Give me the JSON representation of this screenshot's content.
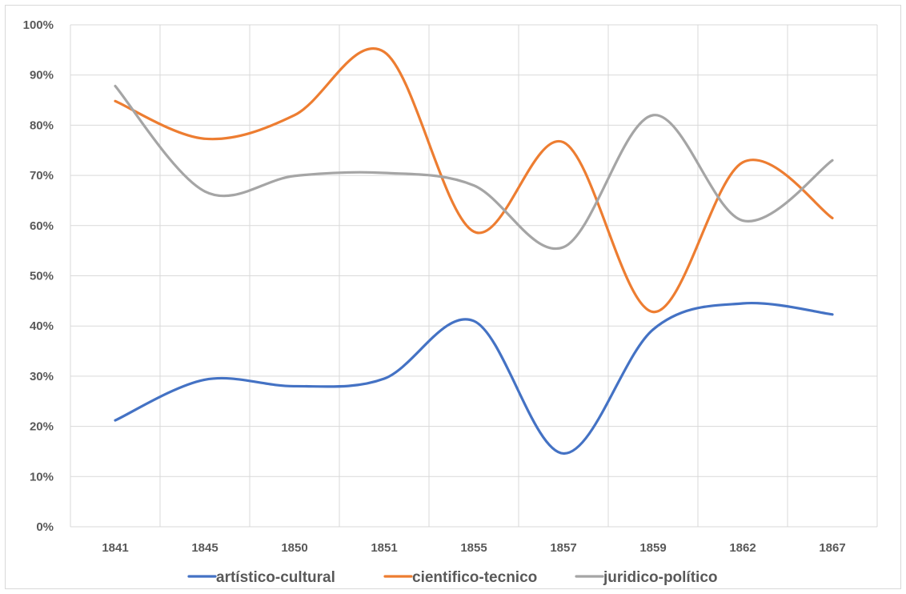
{
  "chart_data": {
    "type": "line",
    "title": "",
    "xlabel": "",
    "ylabel": "",
    "categories": [
      "1841",
      "1845",
      "1850",
      "1851",
      "1855",
      "1857",
      "1859",
      "1862",
      "1867"
    ],
    "ylim": [
      0,
      100
    ],
    "y_ticks": [
      "0%",
      "10%",
      "20%",
      "30%",
      "40%",
      "50%",
      "60%",
      "70%",
      "80%",
      "90%",
      "100%"
    ],
    "grid": "both",
    "smoothed": true,
    "legend_position": "bottom",
    "series": [
      {
        "name": "artístico-cultural",
        "color": "#4472C4",
        "values": [
          21.2,
          29.3,
          28.0,
          29.5,
          41.0,
          14.6,
          39.3,
          44.5,
          42.3
        ]
      },
      {
        "name": "cientifico-tecnico",
        "color": "#ED7D31",
        "values": [
          84.8,
          77.3,
          82.0,
          94.6,
          58.8,
          76.6,
          42.8,
          72.6,
          61.5
        ]
      },
      {
        "name": "juridico-político",
        "color": "#A5A5A5",
        "values": [
          87.8,
          66.8,
          69.9,
          70.5,
          68.0,
          55.7,
          82.0,
          61.0,
          73.0
        ]
      }
    ]
  }
}
